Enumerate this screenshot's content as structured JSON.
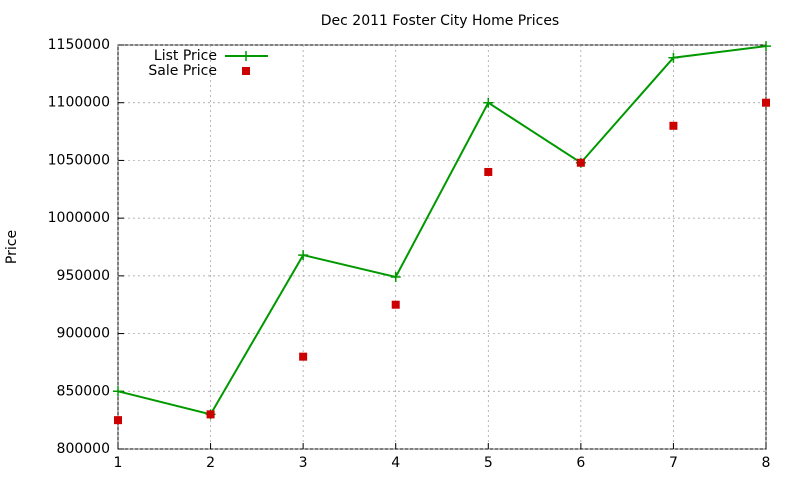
{
  "chart_data": {
    "type": "line",
    "title": "Dec 2011 Foster City Home Prices",
    "y_label": "Price",
    "x": [
      1,
      2,
      3,
      4,
      5,
      6,
      7,
      8
    ],
    "series": [
      {
        "name": "List Price",
        "color": "#009900",
        "style": "linespoints",
        "values": [
          850000,
          830000,
          968000,
          949000,
          1100000,
          1048000,
          1139000,
          1149000
        ]
      },
      {
        "name": "Sale Price",
        "color": "#cc0000",
        "style": "points",
        "values": [
          825000,
          830000,
          880000,
          925000,
          1040000,
          1048000,
          1080000,
          1100000
        ]
      }
    ],
    "xlim": [
      1,
      8
    ],
    "xticks": [
      1,
      2,
      3,
      4,
      5,
      6,
      7,
      8
    ],
    "ylim": [
      800000,
      1150000
    ],
    "yticks": [
      800000,
      850000,
      900000,
      950000,
      1000000,
      1050000,
      1100000,
      1150000
    ],
    "grid": true,
    "legend": "top-left"
  }
}
